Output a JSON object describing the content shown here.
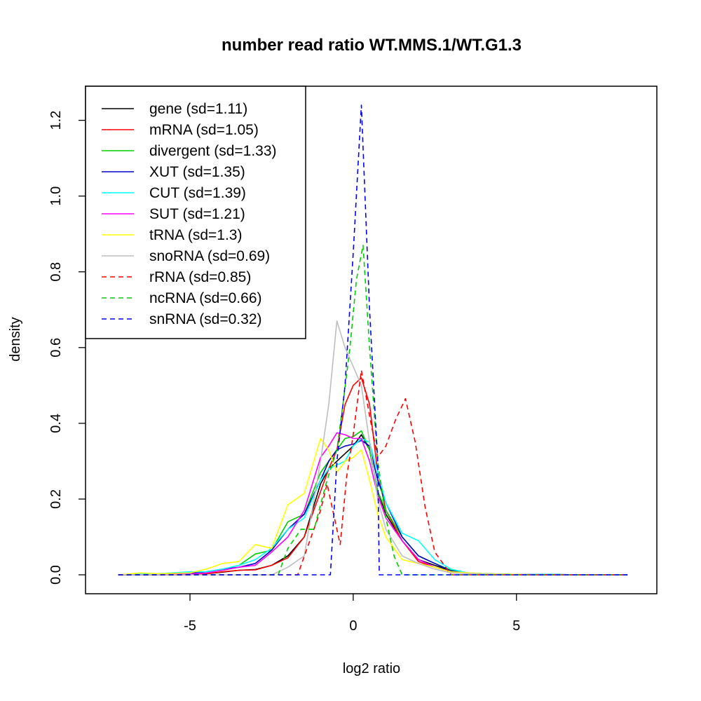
{
  "chart_data": {
    "type": "line",
    "title": "number read ratio WT.MMS.1/WT.G1.3",
    "xlabel": "log2 ratio",
    "ylabel": "density",
    "xlim": [
      -8.2,
      9.3
    ],
    "ylim": [
      -0.05,
      1.29
    ],
    "x_ticks": [
      -5,
      0,
      5
    ],
    "x_tick_labels": [
      "-5",
      "0",
      "5"
    ],
    "y_ticks": [
      0.0,
      0.2,
      0.4,
      0.6,
      0.8,
      1.0,
      1.2
    ],
    "y_tick_labels": [
      "0.0",
      "0.2",
      "0.4",
      "0.6",
      "0.8",
      "1.0",
      "1.2"
    ],
    "legend_position": "top-left",
    "series": [
      {
        "name": "gene (sd=1.11)",
        "color": "#000000",
        "dash": "solid",
        "x": [
          -7.2,
          -6,
          -5,
          -4.5,
          -4,
          -3.5,
          -3,
          -2.5,
          -2,
          -1.5,
          -1,
          -0.75,
          -0.5,
          -0.25,
          0,
          0.25,
          0.5,
          0.75,
          1,
          1.5,
          2,
          2.5,
          3,
          3.5,
          4,
          5,
          6,
          7,
          8.4
        ],
        "y": [
          0,
          0,
          0,
          0.003,
          0.007,
          0.012,
          0.014,
          0.025,
          0.05,
          0.1,
          0.24,
          0.28,
          0.3,
          0.32,
          0.34,
          0.37,
          0.33,
          0.22,
          0.16,
          0.09,
          0.04,
          0.025,
          0.01,
          0.004,
          0.002,
          0.001,
          0,
          0,
          0
        ]
      },
      {
        "name": "mRNA (sd=1.05)",
        "color": "#ff0000",
        "dash": "solid",
        "x": [
          -7.2,
          -6,
          -5,
          -4.5,
          -4,
          -3.5,
          -3,
          -2.5,
          -2,
          -1.5,
          -1,
          -0.75,
          -0.5,
          -0.25,
          0,
          0.25,
          0.5,
          0.75,
          1,
          1.5,
          2,
          2.5,
          3,
          3.5,
          4,
          5,
          6,
          7,
          8.4
        ],
        "y": [
          0,
          0,
          0,
          0.003,
          0.008,
          0.012,
          0.013,
          0.025,
          0.045,
          0.1,
          0.22,
          0.28,
          0.33,
          0.45,
          0.5,
          0.52,
          0.45,
          0.27,
          0.17,
          0.09,
          0.035,
          0.02,
          0.008,
          0.004,
          0.002,
          0.001,
          0,
          0,
          0
        ]
      },
      {
        "name": "divergent (sd=1.33)",
        "color": "#00cd00",
        "dash": "solid",
        "x": [
          -7.2,
          -6,
          -5,
          -4.5,
          -4,
          -3.5,
          -3,
          -2.5,
          -2,
          -1.5,
          -1,
          -0.75,
          -0.5,
          -0.25,
          0,
          0.25,
          0.5,
          0.75,
          1,
          1.5,
          2,
          2.5,
          3,
          3.5,
          4,
          5,
          6,
          7,
          8.4
        ],
        "y": [
          0,
          0,
          0.003,
          0.008,
          0.015,
          0.025,
          0.055,
          0.065,
          0.14,
          0.16,
          0.27,
          0.3,
          0.33,
          0.36,
          0.365,
          0.38,
          0.33,
          0.22,
          0.17,
          0.1,
          0.05,
          0.03,
          0.012,
          0.005,
          0.003,
          0.001,
          0.001,
          0,
          0
        ]
      },
      {
        "name": "XUT (sd=1.35)",
        "color": "#0000cd",
        "dash": "solid",
        "x": [
          -7.2,
          -6,
          -5,
          -4.5,
          -4,
          -3.5,
          -3,
          -2.5,
          -2,
          -1.5,
          -1,
          -0.75,
          -0.5,
          -0.25,
          0,
          0.25,
          0.5,
          0.75,
          1,
          1.5,
          2,
          2.5,
          3,
          3.5,
          4,
          5,
          6,
          7,
          8.4
        ],
        "y": [
          0,
          0,
          0.004,
          0.008,
          0.015,
          0.02,
          0.03,
          0.065,
          0.12,
          0.16,
          0.25,
          0.3,
          0.33,
          0.34,
          0.345,
          0.355,
          0.34,
          0.25,
          0.19,
          0.1,
          0.05,
          0.03,
          0.01,
          0.005,
          0.003,
          0.001,
          0.001,
          0,
          0
        ]
      },
      {
        "name": "CUT (sd=1.39)",
        "color": "#00ffff",
        "dash": "solid",
        "x": [
          -7.2,
          -6,
          -5,
          -4.5,
          -4,
          -3.5,
          -3,
          -2.5,
          -2,
          -1.5,
          -1,
          -0.75,
          -0.5,
          -0.25,
          0,
          0.25,
          0.5,
          0.75,
          1,
          1.5,
          2,
          2.5,
          3,
          3.5,
          4,
          5,
          6,
          7,
          8.4
        ],
        "y": [
          0,
          0.003,
          0.008,
          0.008,
          0.015,
          0.025,
          0.04,
          0.07,
          0.12,
          0.15,
          0.25,
          0.28,
          0.29,
          0.3,
          0.34,
          0.36,
          0.35,
          0.27,
          0.19,
          0.11,
          0.09,
          0.04,
          0.015,
          0.005,
          0.003,
          0.001,
          0.001,
          0,
          0
        ]
      },
      {
        "name": "SUT (sd=1.21)",
        "color": "#ff00ff",
        "dash": "solid",
        "x": [
          -7.2,
          -6,
          -5,
          -4.5,
          -4,
          -3.5,
          -3,
          -2.5,
          -2,
          -1.5,
          -1,
          -0.75,
          -0.5,
          -0.25,
          0,
          0.25,
          0.5,
          0.75,
          1,
          1.5,
          2,
          2.5,
          3,
          3.5,
          4,
          5,
          6,
          7,
          8.4
        ],
        "y": [
          0,
          0,
          0.002,
          0.005,
          0.012,
          0.02,
          0.025,
          0.06,
          0.1,
          0.17,
          0.31,
          0.34,
          0.375,
          0.37,
          0.36,
          0.36,
          0.3,
          0.21,
          0.15,
          0.09,
          0.04,
          0.02,
          0.008,
          0.004,
          0.002,
          0.001,
          0,
          0,
          0
        ]
      },
      {
        "name": "tRNA (sd=1.3)",
        "color": "#ffff00",
        "dash": "solid",
        "x": [
          -7.2,
          -6.5,
          -6,
          -5,
          -4.5,
          -4,
          -3.5,
          -3,
          -2.5,
          -2,
          -1.5,
          -1,
          -0.75,
          -0.5,
          -0.25,
          0,
          0.25,
          0.5,
          0.75,
          1,
          1.5,
          2,
          2.5,
          3,
          4,
          5,
          6,
          7,
          8.4
        ],
        "y": [
          0,
          0.005,
          0.003,
          0.005,
          0.015,
          0.03,
          0.035,
          0.08,
          0.07,
          0.185,
          0.215,
          0.36,
          0.33,
          0.27,
          0.3,
          0.31,
          0.33,
          0.25,
          0.16,
          0.1,
          0.04,
          0.03,
          0.02,
          0.008,
          0.003,
          0.001,
          0,
          0,
          0
        ]
      },
      {
        "name": "snoRNA (sd=0.69)",
        "color": "#bebebe",
        "dash": "solid",
        "x": [
          -7.2,
          -3,
          -2.5,
          -2,
          -1.5,
          -1,
          -0.75,
          -0.5,
          -0.25,
          0,
          0.25,
          0.5,
          0.75,
          1,
          1.5,
          2,
          2.5,
          3,
          4,
          5,
          6,
          7,
          8.4
        ],
        "y": [
          0,
          0,
          0,
          0.02,
          0.05,
          0.3,
          0.45,
          0.67,
          0.6,
          0.55,
          0.5,
          0.35,
          0.2,
          0.12,
          0.05,
          0.03,
          0.015,
          0.005,
          0.002,
          0,
          0,
          0,
          0
        ]
      },
      {
        "name": "rRNA (sd=0.85)",
        "color": "#ff0000",
        "dash": "dashed",
        "x": [
          -7.2,
          -1.7,
          -1,
          -0.8,
          -0.6,
          -0.4,
          -0.2,
          0,
          0.25,
          0.5,
          0.75,
          1,
          1.3,
          1.6,
          1.9,
          2.2,
          2.5,
          3,
          8.4
        ],
        "y": [
          0,
          0,
          0.17,
          0.24,
          0.16,
          0.08,
          0.26,
          0.37,
          0.54,
          0.42,
          0.31,
          0.34,
          0.41,
          0.465,
          0.35,
          0.18,
          0.06,
          0,
          0
        ]
      },
      {
        "name": "ncRNA (sd=0.66)",
        "color": "#00cd00",
        "dash": "dashed",
        "x": [
          -7.2,
          -2.7,
          -2.3,
          -2,
          -1.6,
          -1.2,
          -0.8,
          -0.5,
          -0.3,
          -0.1,
          0.1,
          0.3,
          0.5,
          0.75,
          1,
          1.25,
          1.5,
          2,
          8.4
        ],
        "y": [
          0,
          0,
          0,
          0.07,
          0.12,
          0.12,
          0.25,
          0.33,
          0.46,
          0.6,
          0.78,
          0.87,
          0.6,
          0.3,
          0.15,
          0.05,
          0,
          0,
          0
        ]
      },
      {
        "name": "snRNA (sd=0.32)",
        "color": "#0000ff",
        "dash": "dashed",
        "x": [
          -7.2,
          -0.7,
          -0.5,
          -0.25,
          0,
          0.25,
          0.5,
          0.75,
          0.8,
          8.4
        ],
        "y": [
          0,
          0,
          0.3,
          0.5,
          0.85,
          1.24,
          0.7,
          0.3,
          0,
          0
        ]
      }
    ]
  }
}
